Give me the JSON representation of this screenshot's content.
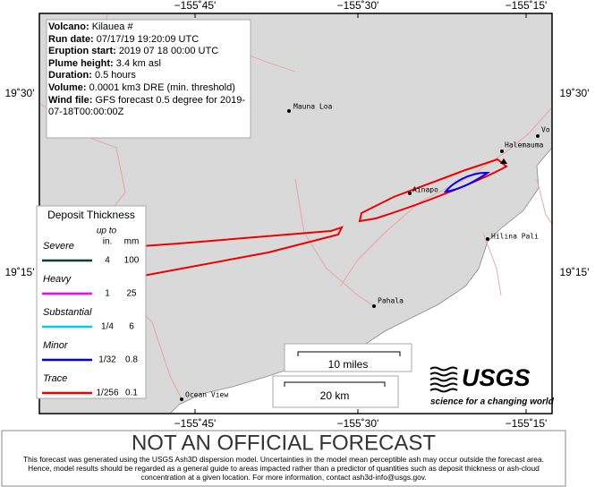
{
  "map": {
    "lon_labels": [
      "−155˚45'",
      "−155˚30'",
      "−155˚15'"
    ],
    "lat_labels": [
      "19˚30'",
      "19˚15'"
    ],
    "places": [
      "Mauna Loa",
      "Vo",
      "Halemauma",
      "Ainapo",
      "Hilina Pali",
      "Pahala",
      "Ocean View"
    ],
    "info": [
      {
        "label": "Volcano:",
        "value": "Kilauea #"
      },
      {
        "label": "Run date:",
        "value": "07/17/19 19:20:09 UTC"
      },
      {
        "label": "Eruption start:",
        "value": "2019 07 18 00:00 UTC"
      },
      {
        "label": "Plume height:",
        "value": "3.4  km asl"
      },
      {
        "label": "Duration:",
        "value": "0.5  hours"
      },
      {
        "label": "Volume:",
        "value": "0.0001 km3 DRE (min. threshold)"
      },
      {
        "label": "Wind file:",
        "value": "GFS forecast 0.5 degree for 2019-07-18T00:00:00Z"
      }
    ],
    "legend": {
      "title": "Deposit Thickness",
      "up_to": "up to",
      "in": "in.",
      "mm": "mm",
      "rows": [
        {
          "name": "Severe",
          "in": "4",
          "mm": "100",
          "color": "#0d3d3d"
        },
        {
          "name": "Heavy",
          "in": "1",
          "mm": "25",
          "color": "#ff00ff"
        },
        {
          "name": "Substantial",
          "in": "1/4",
          "mm": "6",
          "color": "#00ccee"
        },
        {
          "name": "Minor",
          "in": "1/32",
          "mm": "0.8",
          "color": "#0000ee"
        },
        {
          "name": "Trace",
          "in": "1/256",
          "mm": "0.1",
          "color": "#ee0000"
        }
      ]
    },
    "scale": [
      "10 miles",
      "20 km"
    ],
    "logo": {
      "name": "USGS",
      "tagline": "science for a changing world"
    }
  },
  "footer": {
    "title": "NOT AN OFFICIAL FORECAST",
    "text": [
      "This forecast was generated using the USGS Ash3D dispersion model. Uncertainties in the model mean perceptible ash may occur outside the forecast area.",
      "Hence, model results should be regarded as a general guide to areas impacted rather than a predictor of quantities such as deposit thickness or ash-cloud",
      "concentration at a given location.  For more information, contact ash3d-info@usgs.gov."
    ]
  }
}
